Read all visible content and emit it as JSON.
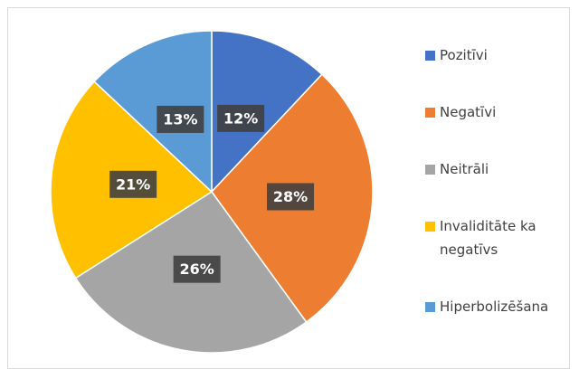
{
  "chart_data": {
    "type": "pie",
    "categories": [
      "Pozitīvi",
      "Negatīvi",
      "Neitrāli",
      "Invaliditāte ka negatīvs",
      "Hiperbolizēšana"
    ],
    "values": [
      12,
      28,
      26,
      21,
      13
    ],
    "value_labels": [
      "12%",
      "28%",
      "26%",
      "21%",
      "13%"
    ],
    "colors": [
      "#4472c4",
      "#ed7d31",
      "#a5a5a5",
      "#ffc000",
      "#5b9bd5"
    ],
    "legend": "right"
  }
}
